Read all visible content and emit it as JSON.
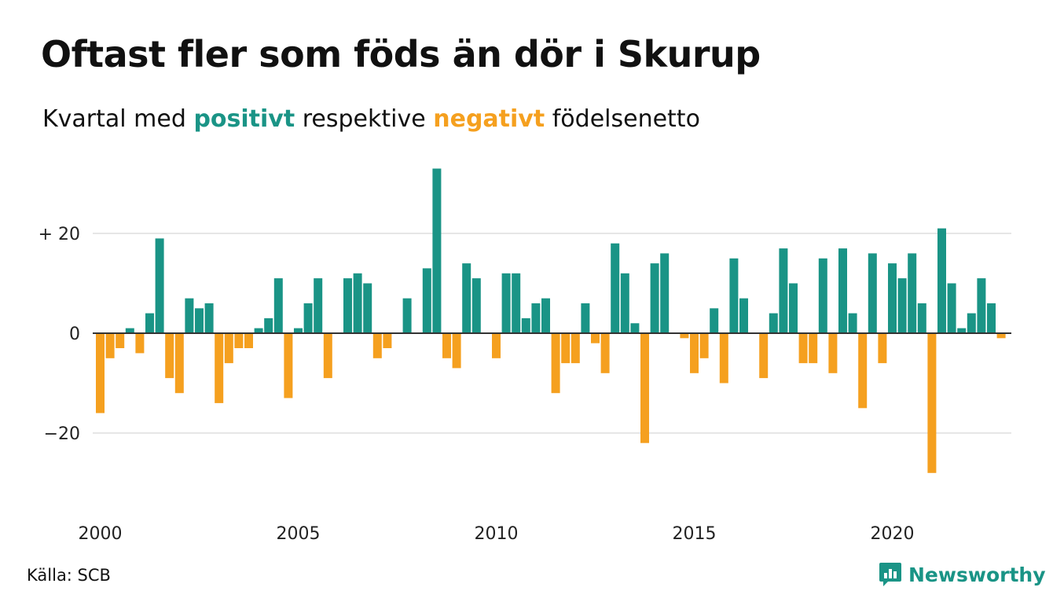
{
  "header": {
    "title": "Oftast fler som föds än dör i Skurup",
    "subtitle_prefix": "Kvartal med",
    "subtitle_positive": "positivt",
    "subtitle_middle": "respektive",
    "subtitle_negative": "negativt",
    "subtitle_suffix": "födelsenetto"
  },
  "footer": {
    "source": "Källa: SCB",
    "brand": "Newsworthy"
  },
  "colors": {
    "positive": "#1a9486",
    "negative": "#f5a01f",
    "grid": "#e6e6e6",
    "baseline": "#333333"
  },
  "chart_data": {
    "type": "bar",
    "x_unit": "quarter",
    "x_start": "2000Q1",
    "ylim": [
      -32,
      34
    ],
    "y_ticks": [
      20,
      0,
      -20
    ],
    "y_tick_labels": [
      "+ 20",
      "0",
      "−20"
    ],
    "x_ticks": [
      2000,
      2005,
      2010,
      2015,
      2020
    ],
    "grid": true,
    "categories": [
      "2000Q1",
      "2000Q2",
      "2000Q3",
      "2000Q4",
      "2001Q1",
      "2001Q2",
      "2001Q3",
      "2001Q4",
      "2002Q1",
      "2002Q2",
      "2002Q3",
      "2002Q4",
      "2003Q1",
      "2003Q2",
      "2003Q3",
      "2003Q4",
      "2004Q1",
      "2004Q2",
      "2004Q3",
      "2004Q4",
      "2005Q1",
      "2005Q2",
      "2005Q3",
      "2005Q4",
      "2006Q1",
      "2006Q2",
      "2006Q3",
      "2006Q4",
      "2007Q1",
      "2007Q2",
      "2007Q3",
      "2007Q4",
      "2008Q1",
      "2008Q2",
      "2008Q3",
      "2008Q4",
      "2009Q1",
      "2009Q2",
      "2009Q3",
      "2009Q4",
      "2010Q1",
      "2010Q2",
      "2010Q3",
      "2010Q4",
      "2011Q1",
      "2011Q2",
      "2011Q3",
      "2011Q4",
      "2012Q1",
      "2012Q2",
      "2012Q3",
      "2012Q4",
      "2013Q1",
      "2013Q2",
      "2013Q3",
      "2013Q4",
      "2014Q1",
      "2014Q2",
      "2014Q3",
      "2014Q4",
      "2015Q1",
      "2015Q2",
      "2015Q3",
      "2015Q4",
      "2016Q1",
      "2016Q2",
      "2016Q3",
      "2016Q4",
      "2017Q1",
      "2017Q2",
      "2017Q3",
      "2017Q4",
      "2018Q1",
      "2018Q2",
      "2018Q3",
      "2018Q4",
      "2019Q1",
      "2019Q2",
      "2019Q3",
      "2019Q4",
      "2020Q1",
      "2020Q2",
      "2020Q3",
      "2020Q4",
      "2021Q1",
      "2021Q2",
      "2021Q3",
      "2021Q4",
      "2022Q1",
      "2022Q2",
      "2022Q3",
      "2022Q4",
      "2023Q1"
    ],
    "values": [
      -16,
      -5,
      -3,
      1,
      -4,
      4,
      19,
      -9,
      -12,
      7,
      5,
      6,
      -14,
      -6,
      -3,
      -3,
      1,
      3,
      11,
      -13,
      1,
      6,
      11,
      -9,
      0,
      11,
      12,
      10,
      -5,
      -3,
      0,
      7,
      0,
      13,
      33,
      -5,
      -7,
      14,
      11,
      0,
      -5,
      12,
      12,
      3,
      6,
      7,
      -12,
      -6,
      -6,
      6,
      -2,
      -8,
      18,
      12,
      2,
      -22,
      14,
      16,
      0,
      -1,
      -8,
      -5,
      5,
      -10,
      15,
      7,
      0,
      -9,
      4,
      17,
      10,
      -6,
      -6,
      15,
      -8,
      17,
      4,
      -15,
      16,
      -6,
      14,
      11,
      16,
      6,
      -28,
      21,
      10,
      1,
      4,
      11,
      6,
      -1,
      0
    ]
  }
}
